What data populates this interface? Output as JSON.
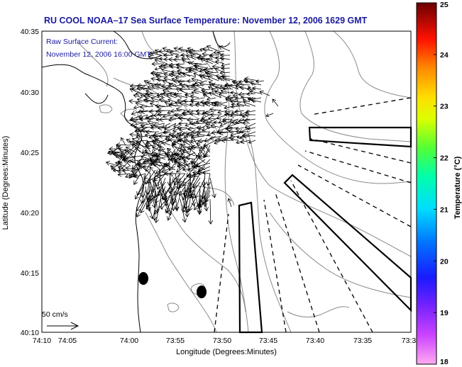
{
  "title": "RU COOL  NOAA–17  Sea Surface Temperature:  November 12, 2006 1629 GMT",
  "annotation": {
    "line1": "Raw Surface Current:",
    "line2": "November 12, 2006 16:00 GMT"
  },
  "scale_label": "50 cm/s",
  "x_axis": {
    "label": "Longitude (Degrees:Minutes)",
    "ticks": [
      "74:10",
      "74:05",
      "74:00",
      "73:55",
      "73:50",
      "73:45",
      "73:40",
      "73:35",
      "73:3"
    ]
  },
  "y_axis": {
    "label": "Latitude (Degrees:Minutes)",
    "ticks": [
      "40:35",
      "40:30",
      "40:25",
      "40:20",
      "40:15",
      "40:10"
    ]
  },
  "colorbar": {
    "label": "Temperature (°C)",
    "ticks": [
      "25",
      "24",
      "23",
      "22",
      "21",
      "20",
      "19",
      "18"
    ],
    "min": 18,
    "max": 25,
    "colors": [
      "#ff99ee",
      "#cc33ff",
      "#1a1aff",
      "#00ccff",
      "#00ffaa",
      "#66ff33",
      "#ffff00",
      "#ff9900",
      "#ff0000",
      "#6b0000"
    ]
  },
  "colors": {
    "title": "#1a1a9e",
    "land_line": "#000000",
    "bathymetry": "#888888",
    "vectors": "#000000"
  }
}
